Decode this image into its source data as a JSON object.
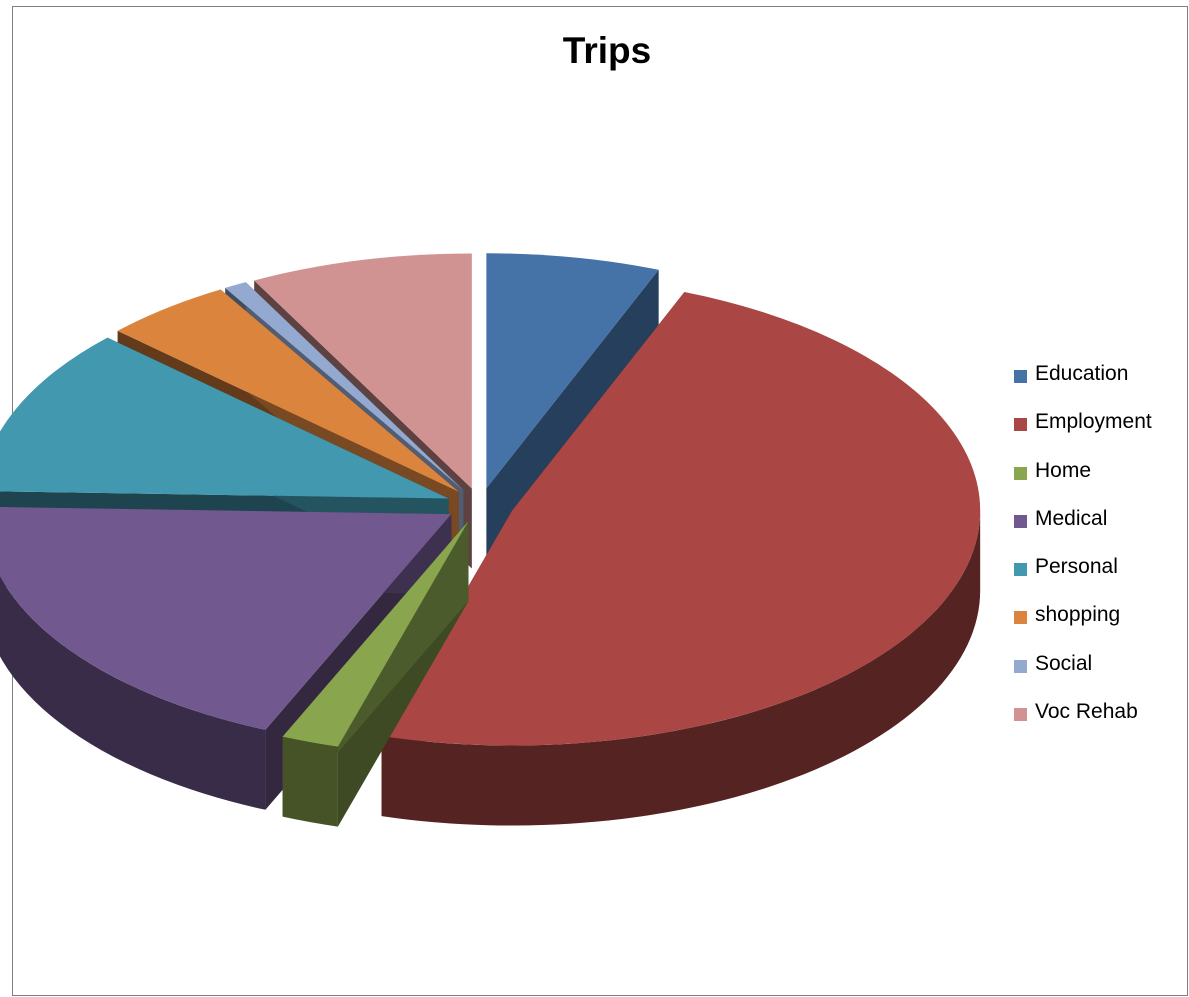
{
  "chart_data": {
    "type": "pie",
    "style": "3d-exploded",
    "title": "Trips",
    "legend_position": "right",
    "slices": [
      {
        "label": "Education",
        "value": 6.0,
        "color": "#4572a7"
      },
      {
        "label": "Employment",
        "value": 48.5,
        "color": "#aa4643"
      },
      {
        "label": "Home",
        "value": 2.0,
        "color": "#89a54e"
      },
      {
        "label": "Medical",
        "value": 19.0,
        "color": "#71588f"
      },
      {
        "label": "Personal",
        "value": 11.5,
        "color": "#4198af"
      },
      {
        "label": "shopping",
        "value": 4.5,
        "color": "#db843d"
      },
      {
        "label": "Social",
        "value": 0.8,
        "color": "#93a9cf"
      },
      {
        "label": "Voc Rehab",
        "value": 7.7,
        "color": "#d19392"
      }
    ]
  }
}
